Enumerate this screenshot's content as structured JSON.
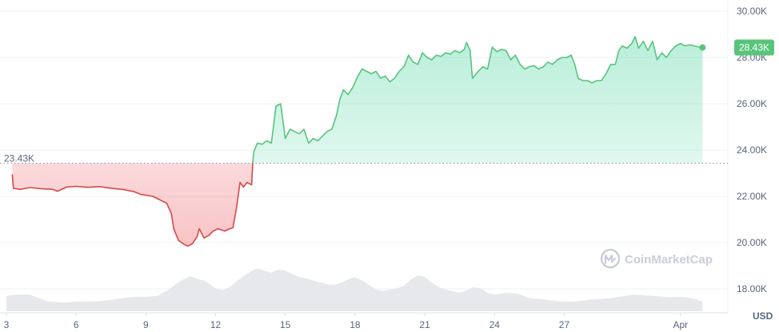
{
  "chart_data": {
    "type": "area",
    "currency_label": "USD",
    "watermark": "CoinMarketCap",
    "reference_label": "23.43K",
    "current_label": "28.43K",
    "reference_value": 23430,
    "current_value": 28430,
    "ylim": [
      17000,
      30500
    ],
    "y_ticks": [
      {
        "value": 30000,
        "label": "30.00K"
      },
      {
        "value": 28000,
        "label": "28.00K"
      },
      {
        "value": 26000,
        "label": "26.00K"
      },
      {
        "value": 24000,
        "label": "24.00K"
      },
      {
        "value": 22000,
        "label": "22.00K"
      },
      {
        "value": 20000,
        "label": "20.00K"
      },
      {
        "value": 18000,
        "label": "18.00K"
      }
    ],
    "xlim": [
      3,
      33.9
    ],
    "x_ticks": [
      {
        "value": 3,
        "label": "3"
      },
      {
        "value": 6,
        "label": "6"
      },
      {
        "value": 9,
        "label": "9"
      },
      {
        "value": 12,
        "label": "12"
      },
      {
        "value": 15,
        "label": "15"
      },
      {
        "value": 18,
        "label": "18"
      },
      {
        "value": 21,
        "label": "21"
      },
      {
        "value": 24,
        "label": "24"
      },
      {
        "value": 27,
        "label": "27"
      },
      {
        "value": 32,
        "label": "Apr"
      }
    ],
    "colors": {
      "up": "#16c784",
      "down": "#ea3943",
      "line_up": "#57c47d",
      "line_down": "#d44a44",
      "volume": "#e6e8ec",
      "badge": "#59c57b"
    },
    "price_series": [
      [
        3.25,
        22950
      ],
      [
        3.3,
        22350
      ],
      [
        3.6,
        22300
      ],
      [
        4.0,
        22380
      ],
      [
        4.5,
        22330
      ],
      [
        5.0,
        22300
      ],
      [
        5.2,
        22220
      ],
      [
        5.6,
        22400
      ],
      [
        6.0,
        22430
      ],
      [
        6.5,
        22390
      ],
      [
        7.0,
        22420
      ],
      [
        7.5,
        22350
      ],
      [
        8.0,
        22300
      ],
      [
        8.5,
        22200
      ],
      [
        8.8,
        22080
      ],
      [
        9.3,
        22000
      ],
      [
        9.6,
        21850
      ],
      [
        9.9,
        21700
      ],
      [
        10.1,
        21250
      ],
      [
        10.2,
        20600
      ],
      [
        10.4,
        20100
      ],
      [
        10.6,
        19950
      ],
      [
        10.8,
        19850
      ],
      [
        11.0,
        19950
      ],
      [
        11.2,
        20250
      ],
      [
        11.3,
        20600
      ],
      [
        11.5,
        20200
      ],
      [
        11.7,
        20300
      ],
      [
        11.9,
        20500
      ],
      [
        12.1,
        20600
      ],
      [
        12.4,
        20500
      ],
      [
        12.6,
        20600
      ],
      [
        12.75,
        20650
      ],
      [
        12.9,
        21500
      ],
      [
        13.05,
        22600
      ],
      [
        13.2,
        22400
      ],
      [
        13.35,
        22600
      ],
      [
        13.45,
        22550
      ],
      [
        13.55,
        22500
      ],
      [
        13.6,
        23500
      ],
      [
        13.65,
        23950
      ],
      [
        13.8,
        24300
      ],
      [
        14.0,
        24250
      ],
      [
        14.2,
        24400
      ],
      [
        14.4,
        24300
      ],
      [
        14.6,
        25900
      ],
      [
        14.8,
        26000
      ],
      [
        15.0,
        24500
      ],
      [
        15.2,
        24900
      ],
      [
        15.4,
        24800
      ],
      [
        15.6,
        24700
      ],
      [
        15.8,
        24900
      ],
      [
        16.0,
        24300
      ],
      [
        16.2,
        24500
      ],
      [
        16.4,
        24400
      ],
      [
        16.6,
        24600
      ],
      [
        16.8,
        24800
      ],
      [
        17.0,
        24900
      ],
      [
        17.2,
        25500
      ],
      [
        17.35,
        26200
      ],
      [
        17.5,
        26600
      ],
      [
        17.7,
        26400
      ],
      [
        17.9,
        26700
      ],
      [
        18.1,
        27150
      ],
      [
        18.3,
        27500
      ],
      [
        18.5,
        27400
      ],
      [
        18.7,
        27300
      ],
      [
        18.9,
        27400
      ],
      [
        19.1,
        27100
      ],
      [
        19.3,
        27200
      ],
      [
        19.5,
        26950
      ],
      [
        19.7,
        27100
      ],
      [
        19.9,
        27400
      ],
      [
        20.1,
        27600
      ],
      [
        20.3,
        28100
      ],
      [
        20.5,
        27800
      ],
      [
        20.7,
        27700
      ],
      [
        20.9,
        28200
      ],
      [
        21.1,
        28000
      ],
      [
        21.3,
        27900
      ],
      [
        21.5,
        28100
      ],
      [
        21.7,
        28050
      ],
      [
        21.9,
        28200
      ],
      [
        22.1,
        28150
      ],
      [
        22.3,
        28300
      ],
      [
        22.5,
        28200
      ],
      [
        22.7,
        28350
      ],
      [
        22.8,
        28650
      ],
      [
        22.95,
        28300
      ],
      [
        23.05,
        27100
      ],
      [
        23.3,
        27400
      ],
      [
        23.5,
        27600
      ],
      [
        23.7,
        27500
      ],
      [
        23.9,
        28450
      ],
      [
        24.1,
        28250
      ],
      [
        24.3,
        28350
      ],
      [
        24.5,
        28300
      ],
      [
        24.7,
        27900
      ],
      [
        24.9,
        28100
      ],
      [
        25.1,
        27700
      ],
      [
        25.3,
        27500
      ],
      [
        25.5,
        27600
      ],
      [
        25.7,
        27650
      ],
      [
        25.9,
        27500
      ],
      [
        26.1,
        27600
      ],
      [
        26.3,
        27800
      ],
      [
        26.5,
        27700
      ],
      [
        26.7,
        27900
      ],
      [
        26.9,
        28000
      ],
      [
        27.1,
        28000
      ],
      [
        27.3,
        28100
      ],
      [
        27.45,
        27700
      ],
      [
        27.6,
        27100
      ],
      [
        27.8,
        27000
      ],
      [
        28.0,
        27000
      ],
      [
        28.2,
        26900
      ],
      [
        28.4,
        27000
      ],
      [
        28.6,
        27000
      ],
      [
        28.8,
        27300
      ],
      [
        29.0,
        27700
      ],
      [
        29.2,
        27700
      ],
      [
        29.35,
        28300
      ],
      [
        29.5,
        28500
      ],
      [
        29.7,
        28400
      ],
      [
        29.9,
        28600
      ],
      [
        30.05,
        28900
      ],
      [
        30.2,
        28400
      ],
      [
        30.4,
        28700
      ],
      [
        30.6,
        28300
      ],
      [
        30.8,
        28700
      ],
      [
        31.0,
        27900
      ],
      [
        31.2,
        28200
      ],
      [
        31.4,
        28000
      ],
      [
        31.6,
        28300
      ],
      [
        31.8,
        28500
      ],
      [
        32.0,
        28600
      ],
      [
        32.2,
        28500
      ],
      [
        32.4,
        28550
      ],
      [
        32.6,
        28500
      ],
      [
        32.8,
        28450
      ],
      [
        32.95,
        28430
      ]
    ],
    "volume_series": [
      [
        3.0,
        0.35
      ],
      [
        3.5,
        0.38
      ],
      [
        4.0,
        0.38
      ],
      [
        4.4,
        0.3
      ],
      [
        4.8,
        0.22
      ],
      [
        5.5,
        0.2
      ],
      [
        6.0,
        0.22
      ],
      [
        7.0,
        0.23
      ],
      [
        7.5,
        0.26
      ],
      [
        8.0,
        0.3
      ],
      [
        8.5,
        0.33
      ],
      [
        9.0,
        0.33
      ],
      [
        9.5,
        0.35
      ],
      [
        10.0,
        0.5
      ],
      [
        10.3,
        0.62
      ],
      [
        10.6,
        0.72
      ],
      [
        10.9,
        0.8
      ],
      [
        11.2,
        0.74
      ],
      [
        11.5,
        0.7
      ],
      [
        11.8,
        0.6
      ],
      [
        12.0,
        0.52
      ],
      [
        12.3,
        0.48
      ],
      [
        12.6,
        0.55
      ],
      [
        12.9,
        0.68
      ],
      [
        13.2,
        0.8
      ],
      [
        13.5,
        0.9
      ],
      [
        13.8,
        0.98
      ],
      [
        14.1,
        0.92
      ],
      [
        14.4,
        0.88
      ],
      [
        14.7,
        0.95
      ],
      [
        15.0,
        0.92
      ],
      [
        15.3,
        0.85
      ],
      [
        15.6,
        0.78
      ],
      [
        15.9,
        0.75
      ],
      [
        16.2,
        0.7
      ],
      [
        16.5,
        0.66
      ],
      [
        16.8,
        0.62
      ],
      [
        17.1,
        0.6
      ],
      [
        17.4,
        0.65
      ],
      [
        17.7,
        0.72
      ],
      [
        18.0,
        0.78
      ],
      [
        18.3,
        0.7
      ],
      [
        18.6,
        0.6
      ],
      [
        18.9,
        0.5
      ],
      [
        19.2,
        0.46
      ],
      [
        19.5,
        0.5
      ],
      [
        19.8,
        0.52
      ],
      [
        20.1,
        0.58
      ],
      [
        20.4,
        0.72
      ],
      [
        20.7,
        0.82
      ],
      [
        21.0,
        0.78
      ],
      [
        21.3,
        0.65
      ],
      [
        21.6,
        0.55
      ],
      [
        21.9,
        0.5
      ],
      [
        22.2,
        0.45
      ],
      [
        22.5,
        0.42
      ],
      [
        22.8,
        0.48
      ],
      [
        23.1,
        0.55
      ],
      [
        23.4,
        0.52
      ],
      [
        23.7,
        0.42
      ],
      [
        24.0,
        0.38
      ],
      [
        24.5,
        0.42
      ],
      [
        25.0,
        0.4
      ],
      [
        25.5,
        0.3
      ],
      [
        26.0,
        0.28
      ],
      [
        26.5,
        0.24
      ],
      [
        27.0,
        0.22
      ],
      [
        27.5,
        0.22
      ],
      [
        28.0,
        0.26
      ],
      [
        28.5,
        0.28
      ],
      [
        29.0,
        0.3
      ],
      [
        29.5,
        0.34
      ],
      [
        30.0,
        0.38
      ],
      [
        30.5,
        0.36
      ],
      [
        31.0,
        0.34
      ],
      [
        31.5,
        0.32
      ],
      [
        32.0,
        0.33
      ],
      [
        32.5,
        0.3
      ],
      [
        32.95,
        0.22
      ]
    ]
  }
}
